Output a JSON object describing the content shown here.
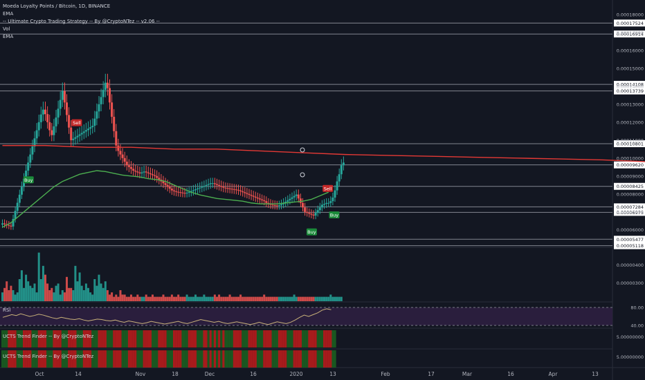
{
  "header": {
    "symbol": "Moeda Loyalty Points / Bitcoin, 1D, BINANCE",
    "indicators": [
      "EMA",
      "-- Ultimate Crypto Trading Strategy -- By @CryptoNTez -- v2.06 --",
      "Vol",
      "EMA"
    ]
  },
  "rsi_label": "RSI",
  "trend_finder_labels": [
    "UCTS Trend Finder -- By @CryptoNTez",
    "UCTS Trend Finder -- By @CryptoNTez"
  ],
  "colors": {
    "background": "#131722",
    "bull": "#26a69a",
    "bear": "#ef5350",
    "ema_slow": "#e53935",
    "ema_fast": "#4caf50",
    "rsi_line": "#c9b27a",
    "rsi_band": "#2a1e3d",
    "buy": "#1b8a3a",
    "sell": "#c62828",
    "level_line": "#b2b5be"
  },
  "chart_data": [
    {
      "type": "candlestick",
      "title": "Moeda Loyalty Points / Bitcoin, 1D, BINANCE",
      "ylim": [
        4.95e-05,
        0.000185
      ],
      "x_ticks": [
        "Oct",
        "14",
        "Nov",
        "18",
        "Dec",
        "16",
        "2020",
        "13",
        "Feb",
        "17",
        "Mar",
        "16",
        "Apr",
        "13"
      ],
      "y_ticks": [
        6e-05,
        7e-05,
        8e-05,
        9e-05,
        0.0001,
        0.00011,
        0.00012,
        0.00013,
        0.00014,
        0.00015,
        0.00016,
        0.00017,
        0.00018
      ],
      "y_tick_labels": [
        "0.00006000",
        "0.00007000",
        "0.00008000",
        "0.00009000",
        "0.00010000",
        "0.00011000",
        "0.00012000",
        "0.00013000",
        "0.00014000",
        "0.00015000",
        "0.00016000",
        "0.00017000",
        "0.00018000"
      ],
      "closes": [
        6.36e-05,
        6.31e-05,
        6.27e-05,
        6.23e-05,
        6.19e-05,
        6.61e-05,
        7.06e-05,
        7.51e-05,
        7.96e-05,
        8.4e-05,
        8.85e-05,
        9.3e-05,
        9.75e-05,
        0.000102,
        0.0001065,
        0.000111,
        0.0001155,
        0.00012,
        0.0001243,
        0.000127,
        0.0001245,
        0.00012,
        0.0001155,
        0.0001128,
        0.0001177,
        0.0001226,
        0.0001275,
        0.0001324,
        0.0001373,
        0.000131,
        0.000124,
        0.000117,
        0.00011,
        0.0001108,
        0.0001116,
        0.0001124,
        0.0001132,
        0.000114,
        0.0001148,
        0.0001156,
        0.0001164,
        0.0001172,
        0.000118,
        0.000122,
        0.000126,
        0.00013,
        0.000134,
        0.000138,
        0.000142,
        0.000139,
        0.000131,
        0.000123,
        0.000115,
        0.000107,
        0.000104,
        0.000102,
        0.0001,
        9.8e-05,
        9.6e-05,
        9.5e-05,
        9.4e-05,
        9.3e-05,
        9.25e-05,
        9.2e-05,
        9.15e-05,
        9.2e-05,
        9.25e-05,
        9.2e-05,
        9.15e-05,
        9.1e-05,
        9.05e-05,
        9e-05,
        8.9e-05,
        8.8e-05,
        8.7e-05,
        8.6e-05,
        8.5e-05,
        8.4e-05,
        8.3e-05,
        8.2e-05,
        8.15e-05,
        8.12e-05,
        8.1e-05,
        8.08e-05,
        8.06e-05,
        8.05e-05,
        8.07e-05,
        8.11e-05,
        8.16e-05,
        8.21e-05,
        8.26e-05,
        8.31e-05,
        8.35e-05,
        8.4e-05,
        8.45e-05,
        8.5e-05,
        8.55e-05,
        8.6e-05,
        8.6e-05,
        8.55e-05,
        8.5e-05,
        8.45e-05,
        8.4e-05,
        8.35e-05,
        8.33e-05,
        8.31e-05,
        8.29e-05,
        8.27e-05,
        8.25e-05,
        8.23e-05,
        8.2e-05,
        8.15e-05,
        8.1e-05,
        8.05e-05,
        8e-05,
        7.95e-05,
        7.9e-05,
        7.85e-05,
        7.8e-05,
        7.75e-05,
        7.7e-05,
        7.65e-05,
        7.6e-05,
        7.5e-05,
        7.45e-05,
        7.4e-05,
        7.38e-05,
        7.36e-05,
        7.35e-05,
        7.37e-05,
        7.43e-05,
        7.5e-05,
        7.57e-05,
        7.65e-05,
        7.73e-05,
        7.81e-05,
        7.89e-05,
        7.97e-05,
        7.75e-05,
        7.5e-05,
        7.25e-05,
        7e-05,
        6.95e-05,
        6.9e-05,
        6.85e-05,
        6.8e-05,
        6.95e-05,
        7.1e-05,
        7.25e-05,
        7.4e-05,
        7.45e-05,
        7.5e-05,
        7.5e-05,
        7.6e-05,
        7.8e-05,
        8.2e-05,
        8.7e-05,
        9.1e-05,
        9.6e-05,
        9.75e-05
      ],
      "ema_slow": [
        0.000107,
        0.000107,
        0.000106,
        0.000106,
        0.000105,
        0.000105,
        0.000104,
        0.000103,
        0.000102,
        0.0001015,
        0.000101,
        0.0001005,
        0.0001,
        9.95e-05,
        9.9e-05,
        9.8e-05,
        9.6e-05,
        9.4e-05,
        9.3e-05,
        9.2e-05,
        9.1e-05,
        9.05e-05,
        9e-05,
        8.95e-05,
        8.9e-05
      ],
      "ema_fast": [
        6.15e-05,
        6.4e-05,
        6.8e-05,
        7.2e-05,
        7.6e-05,
        8e-05,
        8.4e-05,
        8.7e-05,
        8.9e-05,
        9.1e-05,
        9.2e-05,
        9.3e-05,
        9.25e-05,
        9.15e-05,
        9.05e-05,
        9e-05,
        8.95e-05,
        8.85e-05,
        8.8e-05,
        8.7e-05,
        8.5e-05,
        8.3e-05,
        8.1e-05,
        7.95e-05,
        7.85e-05,
        7.75e-05,
        7.7e-05,
        7.65e-05,
        7.6e-05,
        7.5e-05,
        7.45e-05,
        7.45e-05,
        7.45e-05,
        7.5e-05,
        7.55e-05,
        7.6e-05,
        7.7e-05,
        7.9e-05,
        8.1e-05
      ],
      "signals": [
        {
          "label": "Buy",
          "index": 8
        },
        {
          "label": "Sell",
          "index": 23
        },
        {
          "label": "Buy",
          "index": 96
        },
        {
          "label": "Sell",
          "index": 101
        },
        {
          "label": "Buy",
          "index": 103
        }
      ],
      "levels": [
        {
          "value": 0.00017524,
          "label": "0.00017524"
        },
        {
          "value": 0.00016914,
          "label": "0.00016914"
        },
        {
          "value": 0.00014108,
          "label": "0.00014108"
        },
        {
          "value": 0.00013739,
          "label": "0.00013739"
        },
        {
          "value": 0.00010801,
          "label": "0.00010801"
        },
        {
          "value": 9.62e-05,
          "label": "0.00009620"
        },
        {
          "value": 8.425e-05,
          "label": "0.00008425"
        },
        {
          "value": 7.284e-05,
          "label": "0.00007284"
        },
        {
          "value": 6.975e-05,
          "label": "0.00006975"
        },
        {
          "value": 5.477e-05,
          "label": "0.00005477"
        },
        {
          "value": 5.118e-05,
          "label": "0.00005118"
        }
      ]
    },
    {
      "type": "bar",
      "title": "Vol",
      "y_ticks": [
        4e-07,
        3e-07
      ],
      "y_tick_labels": [
        "0.00000400",
        "0.00000300"
      ],
      "values": [
        0.4,
        0.6,
        0.9,
        0.5,
        0.7,
        0.5,
        0.3,
        0.4,
        1.0,
        1.4,
        0.6,
        1.2,
        0.9,
        0.7,
        0.6,
        0.8,
        0.4,
        2.2,
        1.0,
        1.6,
        1.2,
        0.8,
        0.5,
        0.6,
        0.4,
        0.7,
        0.8,
        0.3,
        0.5,
        0.4,
        1.1,
        0.6,
        0.6,
        0.5,
        1.6,
        0.9,
        1.3,
        0.7,
        0.5,
        0.8,
        0.6,
        0.4,
        0.3,
        1.0,
        0.7,
        1.2,
        0.8,
        0.6,
        0.9,
        0.5,
        0.3,
        0.4,
        0.2,
        0.3,
        0.2,
        0.5,
        0.3,
        0.3,
        0.2,
        0.2,
        0.3,
        0.2,
        0.2,
        0.3,
        0.2,
        0.2,
        0.2,
        0.3,
        0.2,
        0.2,
        0.3,
        0.2,
        0.2,
        0.2,
        0.2,
        0.3,
        0.2,
        0.2,
        0.2,
        0.3,
        0.2,
        0.2,
        0.3,
        0.2,
        0.2,
        0.2,
        0.3,
        0.2,
        0.2,
        0.2,
        0.3,
        0.2,
        0.2,
        0.2,
        0.3,
        0.2,
        0.2,
        0.2,
        0.2,
        0.3,
        0.2,
        0.3,
        0.2,
        0.2,
        0.2,
        0.2,
        0.3,
        0.2,
        0.2,
        0.2,
        0.2,
        0.3,
        0.2,
        0.2,
        0.2,
        0.2,
        0.2,
        0.2,
        0.2,
        0.2,
        0.2,
        0.2,
        0.3,
        0.2,
        0.2,
        0.2,
        0.2,
        0.2,
        0.2,
        0.2,
        0.2,
        0.2,
        0.2,
        0.2,
        0.2,
        0.2,
        0.3,
        0.2,
        0.2,
        0.2,
        0.2,
        0.2,
        0.2,
        0.2,
        0.2,
        0.2,
        0.2,
        0.2,
        0.2,
        0.2,
        0.2,
        0.2,
        0.2,
        0.3,
        0.2,
        0.2,
        0.2,
        0.2,
        0.2
      ]
    },
    {
      "type": "line",
      "title": "RSI",
      "y_ticks": [
        80,
        40
      ],
      "y_tick_labels": [
        "80.00",
        "40.00"
      ],
      "values": [
        58,
        61,
        64,
        62,
        66,
        63,
        60,
        62,
        65,
        63,
        60,
        57,
        55,
        58,
        56,
        54,
        53,
        55,
        52,
        50,
        52,
        54,
        53,
        51,
        50,
        52,
        49,
        47,
        50,
        48,
        46,
        44,
        46,
        49,
        47,
        45,
        43,
        45,
        47,
        49,
        46,
        44,
        47,
        50,
        53,
        51,
        49,
        47,
        49,
        46,
        44,
        46,
        48,
        46,
        44,
        42,
        44,
        47,
        44,
        42,
        45,
        48,
        46,
        44,
        47,
        52,
        58,
        63,
        60,
        64,
        68,
        74,
        77,
        75
      ]
    },
    {
      "type": "heatmap",
      "title": "UCTS Trend Finder -- By @CryptoNTez",
      "y_ticks": [
        5
      ],
      "y_tick_labels": [
        "5.00000000"
      ]
    },
    {
      "type": "heatmap",
      "title": "UCTS Trend Finder -- By @CryptoNTez",
      "y_ticks": [
        5
      ],
      "y_tick_labels": [
        "5.00000000"
      ]
    }
  ]
}
